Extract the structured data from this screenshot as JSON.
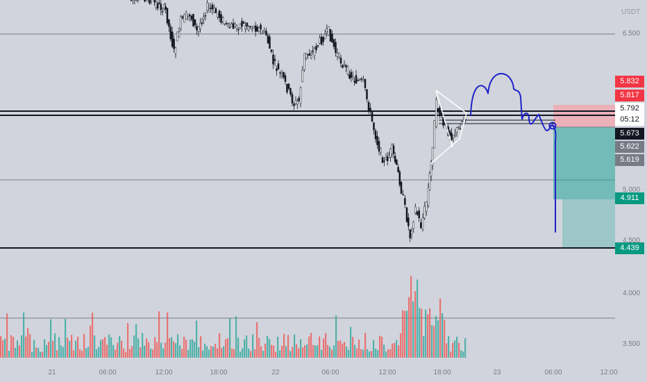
{
  "currency": "USDT",
  "price_axis_labels": [
    "6.500",
    "5.000",
    "4.500",
    "4.000",
    "3.500"
  ],
  "time_axis_labels": [
    "21",
    "06:00",
    "12:00",
    "18:00",
    "22",
    "06:00",
    "12:00",
    "18:00",
    "23",
    "06:00",
    "12:00"
  ],
  "price_tags": [
    {
      "id": "tp1",
      "label": "5.832",
      "bg": "#f23645",
      "fg": "#ffffff"
    },
    {
      "id": "tp2",
      "label": "5.817",
      "bg": "#f23645",
      "fg": "#ffffff"
    },
    {
      "id": "last",
      "label": "5.792",
      "bg": "#ffffff",
      "fg": "#131722"
    },
    {
      "id": "countdown",
      "label": "05:12",
      "bg": "#ffffff",
      "fg": "#131722"
    },
    {
      "id": "entry",
      "label": "5.673",
      "bg": "#131722",
      "fg": "#ffffff"
    },
    {
      "id": "h1",
      "label": "5.622",
      "bg": "#787b86",
      "fg": "#ffffff"
    },
    {
      "id": "h2",
      "label": "5.619",
      "bg": "#787b86",
      "fg": "#ffffff"
    },
    {
      "id": "target1",
      "label": "4.911",
      "bg": "#089981",
      "fg": "#ffffff"
    },
    {
      "id": "target2",
      "label": "4.439",
      "bg": "#089981",
      "fg": "#ffffff"
    }
  ],
  "colors": {
    "background": "#d1d4dc",
    "up_candle": "#ffffff",
    "down_candle": "#131722",
    "volume_up": "#26a69a",
    "volume_down": "#ef5350",
    "projection_line": "#1e22c8",
    "stop_zone": "#f7a1a8",
    "profit_zone": "#26a69a",
    "level_line": "#131722",
    "grid_line": "#8a8d96"
  }
}
